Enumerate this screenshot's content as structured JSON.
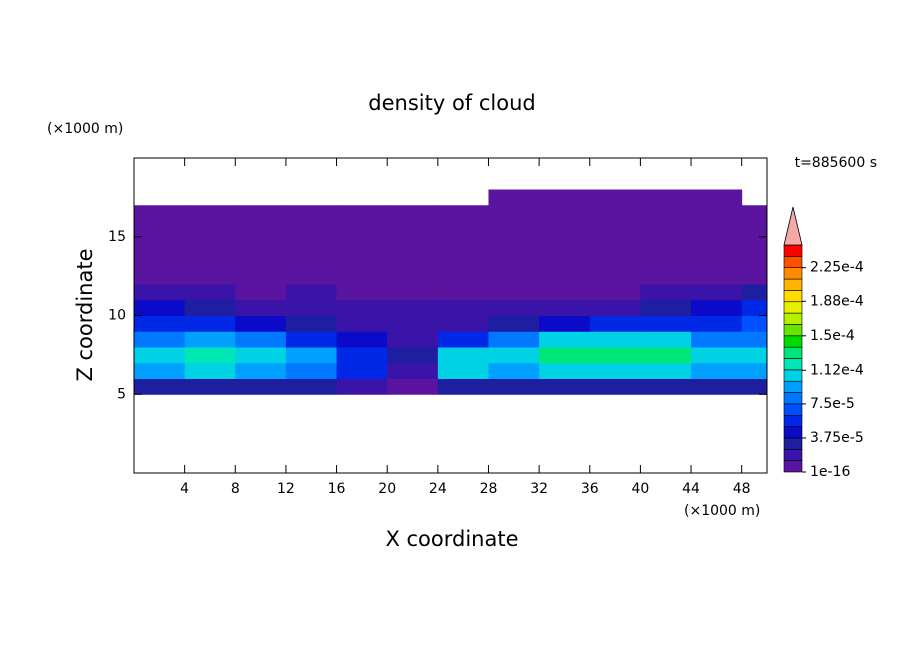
{
  "chart_data": {
    "type": "contour",
    "title": "density of cloud",
    "x_label": "X coordinate",
    "y_label": "Z coordinate",
    "x_unit": "(×1000 m)",
    "y_unit": "(×1000 m)",
    "annotation": "t=885600 s",
    "xlim": [
      0,
      50
    ],
    "ylim": [
      0,
      20
    ],
    "xticks": [
      4,
      8,
      12,
      16,
      20,
      24,
      28,
      32,
      36,
      40,
      44,
      48
    ],
    "yticks": [
      5,
      10,
      15
    ],
    "x": [
      2,
      6,
      10,
      14,
      18,
      22,
      26,
      30,
      34,
      38,
      42,
      46,
      50
    ],
    "y": [
      5.5,
      6.5,
      7.5,
      8.5,
      9.5,
      10.5,
      11.5,
      12.5,
      13.5,
      14.5,
      15.5,
      16.5,
      17.5
    ],
    "z": [
      [
        3e-05,
        3e-05,
        3e-05,
        3e-05,
        2e-05,
        1e-05,
        3e-05,
        3e-05,
        3e-05,
        3e-05,
        3e-05,
        3e-05,
        3e-05
      ],
      [
        9e-05,
        0.0001,
        9e-05,
        8e-05,
        5e-05,
        2e-05,
        0.0001,
        9e-05,
        0.0001,
        0.0001,
        0.0001,
        9e-05,
        9e-05
      ],
      [
        0.000105,
        0.000115,
        0.00011,
        9e-05,
        6e-05,
        3e-05,
        0.00011,
        0.00011,
        0.00013,
        0.000125,
        0.000135,
        0.00011,
        0.0001
      ],
      [
        8e-05,
        9e-05,
        8e-05,
        6e-05,
        4e-05,
        2e-05,
        6e-05,
        8e-05,
        0.0001,
        0.000105,
        0.00011,
        8e-05,
        8e-05
      ],
      [
        6e-05,
        5e-05,
        4e-05,
        3e-05,
        2e-05,
        1.5e-05,
        2e-05,
        3e-05,
        4e-05,
        5e-05,
        5e-05,
        6e-05,
        7e-05
      ],
      [
        4e-05,
        3e-05,
        2e-05,
        2e-05,
        1.5e-05,
        1.5e-05,
        1.5e-05,
        2e-05,
        2e-05,
        2e-05,
        3e-05,
        4e-05,
        5e-05
      ],
      [
        1.5e-05,
        1.5e-05,
        1e-05,
        1.5e-05,
        1e-05,
        1e-05,
        1e-05,
        1e-05,
        1e-05,
        1e-05,
        1.5e-05,
        2e-05,
        3e-05
      ],
      [
        5e-06,
        5e-06,
        5e-06,
        5e-06,
        5e-06,
        5e-06,
        5e-06,
        5e-06,
        5e-06,
        5e-06,
        5e-06,
        5e-06,
        5e-06
      ],
      [
        5e-06,
        5e-06,
        5e-06,
        5e-06,
        5e-06,
        5e-06,
        5e-06,
        5e-06,
        5e-06,
        5e-06,
        5e-06,
        5e-06,
        5e-06
      ],
      [
        5e-06,
        5e-06,
        5e-06,
        5e-06,
        5e-06,
        5e-06,
        5e-06,
        5e-06,
        5e-06,
        5e-06,
        5e-06,
        5e-06,
        5e-06
      ],
      [
        5e-06,
        5e-06,
        5e-06,
        5e-06,
        5e-06,
        5e-06,
        5e-06,
        5e-06,
        5e-06,
        5e-06,
        5e-06,
        5e-06,
        5e-06
      ],
      [
        5e-06,
        5e-06,
        5e-06,
        5e-06,
        5e-06,
        5e-06,
        5e-06,
        5e-06,
        5e-06,
        5e-06,
        5e-06,
        5e-06,
        5e-06
      ],
      [
        null,
        null,
        null,
        null,
        null,
        null,
        null,
        5e-06,
        5e-06,
        5e-06,
        5e-06,
        5e-06,
        null
      ]
    ],
    "levels": [
      1e-16,
      1.25e-05,
      2.5e-05,
      3.75e-05,
      5e-05,
      6.25e-05,
      7.5e-05,
      8.75e-05,
      0.0001,
      0.0001125,
      0.000125,
      0.0001375,
      0.00015,
      0.0001625,
      0.000175,
      0.0001875,
      0.0002,
      0.0002125,
      0.000225,
      0.0002375,
      0.00025
    ],
    "colors": [
      "#5a14a0",
      "#3a14a8",
      "#1e1ea0",
      "#0a0ac8",
      "#0028e6",
      "#0050ff",
      "#0078ff",
      "#00a0ff",
      "#00d2e6",
      "#00e6b4",
      "#00e678",
      "#00dc00",
      "#64e600",
      "#b4f000",
      "#e6f000",
      "#ffdc00",
      "#ffb400",
      "#ff8c00",
      "#ff5000",
      "#ff0000"
    ],
    "extend_color": "#f4a8a8",
    "cbar_ticks": [
      1e-16,
      {
        "value": 3.75e-05,
        "label": "3.75e-5"
      },
      {
        "value": 7.5e-05,
        "label": "7.5e-5"
      },
      {
        "value": 0.000112,
        "label": "1.12e-4"
      },
      {
        "value": 0.00015,
        "label": "1.5e-4"
      },
      {
        "value": 0.000188,
        "label": "1.88e-4"
      },
      {
        "value": 0.000225,
        "label": "2.25e-4"
      }
    ]
  }
}
